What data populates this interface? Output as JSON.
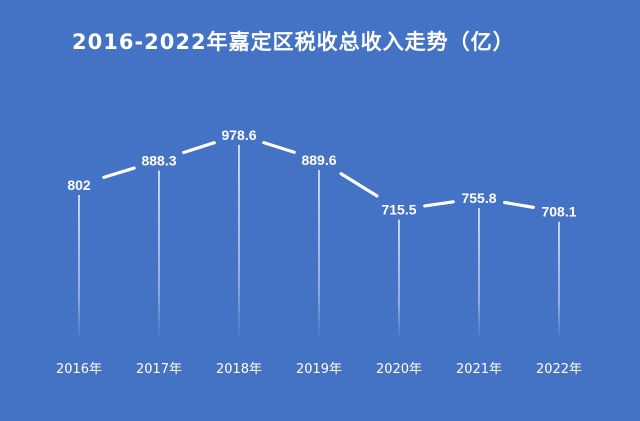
{
  "chart_data": {
    "type": "line",
    "title": "2016-2022年嘉定区税收总收入走势（亿）",
    "categories": [
      "2016年",
      "2017年",
      "2018年",
      "2019年",
      "2020年",
      "2021年",
      "2022年"
    ],
    "series": [
      {
        "values": [
          802,
          888.3,
          978.6,
          889.6,
          715.5,
          755.8,
          708.1
        ],
        "labels": [
          "802",
          "888.3",
          "978.6",
          "889.6",
          "715.5",
          "755.8",
          "708.1"
        ]
      }
    ],
    "xlabel": "",
    "ylabel": "",
    "grid": false,
    "legend": "none",
    "colors": {
      "background": "#4472c4",
      "line": "#ffffff",
      "text": "#ffffff"
    }
  }
}
